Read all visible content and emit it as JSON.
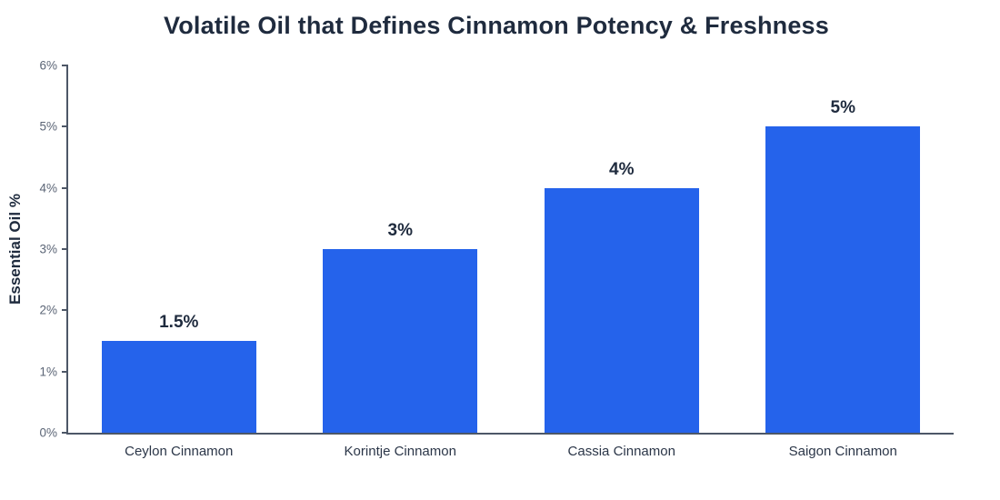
{
  "chart_data": {
    "type": "bar",
    "title": "Volatile Oil that Defines Cinnamon Potency & Freshness",
    "categories": [
      "Ceylon Cinnamon",
      "Korintje Cinnamon",
      "Cassia Cinnamon",
      "Saigon Cinnamon"
    ],
    "values": [
      1.5,
      3,
      4,
      5
    ],
    "value_labels": [
      "1.5%",
      "3%",
      "4%",
      "5%"
    ],
    "xlabel": "",
    "ylabel": "Essential Oil %",
    "ylim": [
      0,
      6
    ],
    "ytick_values": [
      0,
      1,
      2,
      3,
      4,
      5,
      6
    ],
    "ytick_labels": [
      "0%",
      "1%",
      "2%",
      "3%",
      "4%",
      "5%",
      "6%"
    ],
    "grid": false,
    "legend": false,
    "bar_width_fraction": 0.7,
    "colors": {
      "bar": "#2563eb",
      "title_text": "#1f2b3e",
      "value_label_text": "#1f2b3e",
      "axis_line": "#4d5767",
      "tick_label_text": "#5b6576",
      "category_label_text": "#2b3648",
      "background": "#ffffff"
    }
  }
}
